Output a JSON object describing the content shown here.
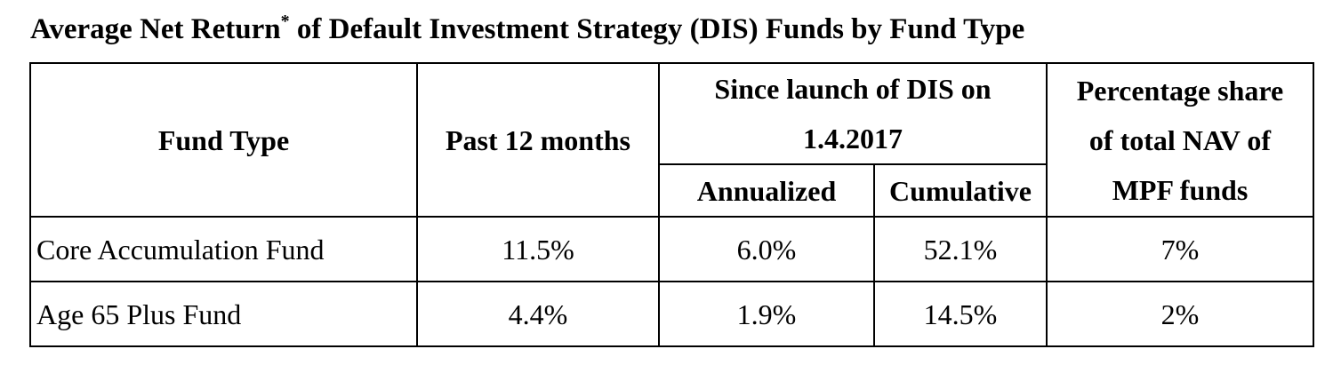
{
  "title": {
    "prefix": "Average Net Return",
    "marker": "*",
    "suffix": " of Default Investment Strategy (DIS) Funds by Fund Type"
  },
  "table": {
    "headers": {
      "fund_type": "Fund Type",
      "past_12_months": "Past 12 months",
      "since_launch_line1": "Since launch of DIS on",
      "since_launch_line2": "1.4.2017",
      "annualized": "Annualized",
      "cumulative": "Cumulative",
      "nav_share_line1": "Percentage share",
      "nav_share_line2": "of total NAV of",
      "nav_share_line3": "MPF funds"
    },
    "rows": [
      {
        "fund_type": "Core Accumulation Fund",
        "past_12_months": "11.5%",
        "annualized": "6.0%",
        "cumulative": "52.1%",
        "nav_share": "7%"
      },
      {
        "fund_type": "Age 65 Plus Fund",
        "past_12_months": "4.4%",
        "annualized": "1.9%",
        "cumulative": "14.5%",
        "nav_share": "2%"
      }
    ]
  }
}
